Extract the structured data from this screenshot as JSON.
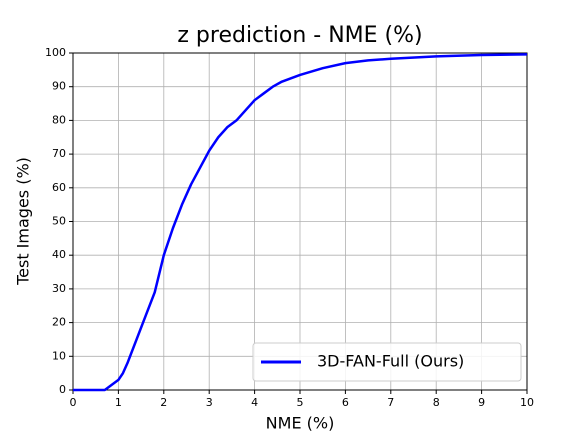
{
  "chart_data": {
    "type": "line",
    "title": "z prediction - NME (%)",
    "x_label": "NME (%)",
    "y_label": "Test Images (%)",
    "x": [
      0,
      0.7,
      0.8,
      0.9,
      1.0,
      1.1,
      1.2,
      1.4,
      1.6,
      1.8,
      2.0,
      2.2,
      2.4,
      2.6,
      2.8,
      3.0,
      3.2,
      3.4,
      3.6,
      3.8,
      4.0,
      4.2,
      4.4,
      4.6,
      5.0,
      5.5,
      6.0,
      6.5,
      7.0,
      8.0,
      9.0,
      10.0
    ],
    "series": [
      {
        "name": "3D-FAN-Full (Ours)",
        "color": "#0000ff",
        "values": [
          0,
          0,
          1,
          2,
          3,
          5,
          8,
          15,
          22,
          29,
          40,
          48,
          55,
          61,
          66,
          71,
          75,
          78,
          80,
          83,
          86,
          88,
          90,
          91.5,
          93.5,
          95.5,
          97,
          97.8,
          98.3,
          99,
          99.4,
          99.6
        ]
      }
    ],
    "xlim": [
      0,
      10
    ],
    "xticks": [
      0,
      1,
      2,
      3,
      4,
      5,
      6,
      7,
      8,
      9,
      10
    ],
    "ylim": [
      0,
      100
    ],
    "yticks": [
      0,
      10,
      20,
      30,
      40,
      50,
      60,
      70,
      80,
      90,
      100
    ],
    "grid": true,
    "legend": "lower right"
  }
}
